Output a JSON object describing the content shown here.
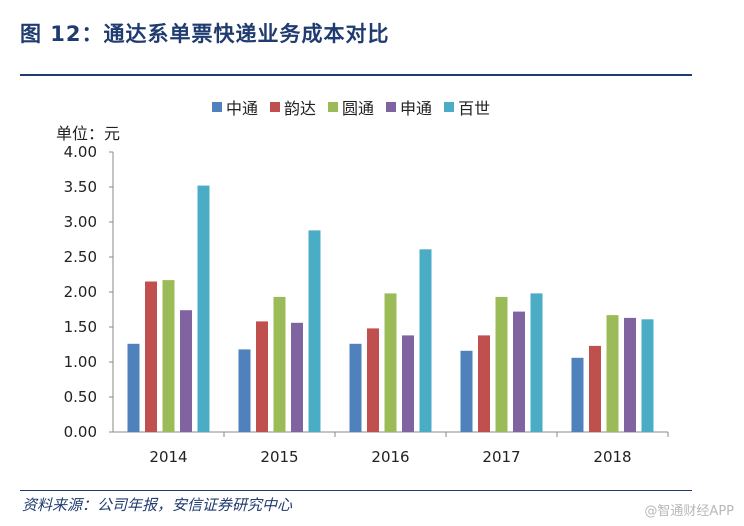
{
  "figure": {
    "title": "图 12：通达系单票快递业务成本对比",
    "source": "资料来源：公司年报，安信证券研究中心",
    "watermark": "@智通财经APP"
  },
  "chart_data": {
    "type": "bar",
    "title": "",
    "unit_label": "单位：元",
    "xlabel": "",
    "ylabel": "",
    "categories": [
      "2014",
      "2015",
      "2016",
      "2017",
      "2018"
    ],
    "ylim": [
      0,
      4.0
    ],
    "yticks": [
      0.0,
      0.5,
      1.0,
      1.5,
      2.0,
      2.5,
      3.0,
      3.5,
      4.0
    ],
    "ytick_labels": [
      "0.00",
      "0.50",
      "1.00",
      "1.50",
      "2.00",
      "2.50",
      "3.00",
      "3.50",
      "4.00"
    ],
    "grid": false,
    "legend_position": "top-center",
    "series": [
      {
        "name": "中通",
        "color": "#4f81bd",
        "values": [
          1.26,
          1.18,
          1.26,
          1.16,
          1.06
        ]
      },
      {
        "name": "韵达",
        "color": "#c0504d",
        "values": [
          2.15,
          1.58,
          1.48,
          1.38,
          1.23
        ]
      },
      {
        "name": "圆通",
        "color": "#9bbb59",
        "values": [
          2.17,
          1.93,
          1.98,
          1.93,
          1.67
        ]
      },
      {
        "name": "申通",
        "color": "#8064a2",
        "values": [
          1.74,
          1.56,
          1.38,
          1.72,
          1.63
        ]
      },
      {
        "name": "百世",
        "color": "#4bacc6",
        "values": [
          3.52,
          2.88,
          2.61,
          1.98,
          1.61
        ]
      }
    ]
  }
}
